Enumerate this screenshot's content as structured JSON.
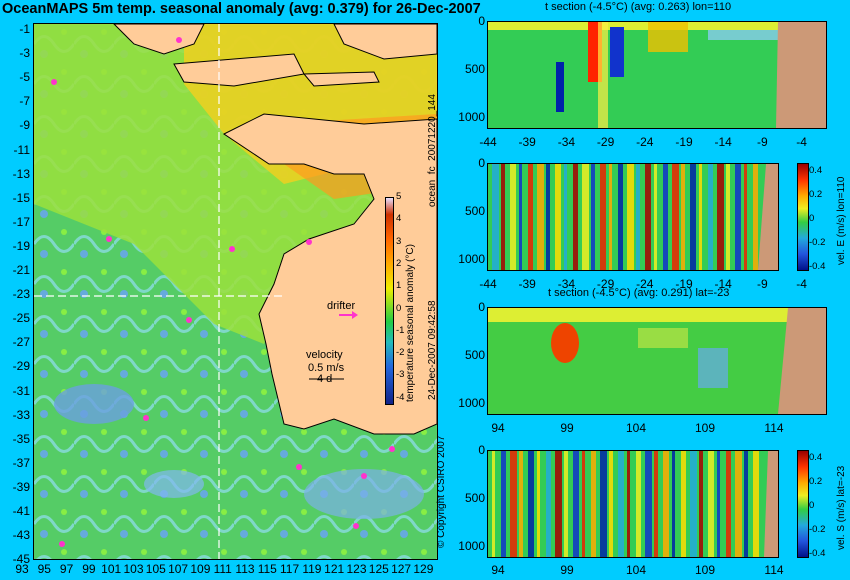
{
  "title": "OceanMAPS 5m temp. seasonal anomaly (avg: 0.379) for 26-Dec-2007",
  "map": {
    "lat_ticks": [
      "-1",
      "-3",
      "-5",
      "-7",
      "-9",
      "-11",
      "-13",
      "-15",
      "-17",
      "-19",
      "-21",
      "-23",
      "-25",
      "-27",
      "-29",
      "-31",
      "-33",
      "-35",
      "-37",
      "-39",
      "-41",
      "-43",
      "-45"
    ],
    "lon_ticks": [
      "93",
      "95",
      "97",
      "99",
      "101",
      "103",
      "105",
      "107",
      "109",
      "111",
      "113",
      "115",
      "117",
      "119",
      "121",
      "123",
      "125",
      "127",
      "129"
    ],
    "drifter_label": "drifter",
    "velocity_label": "velocity",
    "velocity_scale": "0.5 m/s",
    "velocity_days": "4 d",
    "colorbar_label": "temperature seasonal anomaly (°C)",
    "colorbar_ticks": [
      "5",
      "4",
      "3",
      "2",
      "1",
      "0",
      "-1",
      "-2",
      "-3",
      "-4"
    ],
    "section_lat": "-23",
    "section_lon": "110"
  },
  "sections": {
    "top_title": "t section (-4.5°C) (avg: 0.263) lon=110",
    "lat_x_ticks": [
      "-44",
      "-39",
      "-34",
      "-29",
      "-24",
      "-19",
      "-14",
      "-9",
      "-4"
    ],
    "mid_title": "t section (-4.5°C) (avg: 0.291) lat=-23",
    "lon_x_ticks": [
      "94",
      "99",
      "104",
      "109",
      "114"
    ],
    "depth_ticks": [
      "0",
      "500",
      "1000"
    ],
    "vel_e_label": "vel. E (m/s) lon=110",
    "vel_s_label": "vel. S (m/s) lat=-23",
    "vel_ticks": [
      "0.4",
      "0.2",
      "0",
      "-0.2",
      "-0.4"
    ]
  },
  "side_labels": {
    "forecast_id": "ocean_fc_20071220_144",
    "timestamp": "24-Dec-2007 09:42:58",
    "copyright": "© Copyright CSIRO 2007"
  }
}
